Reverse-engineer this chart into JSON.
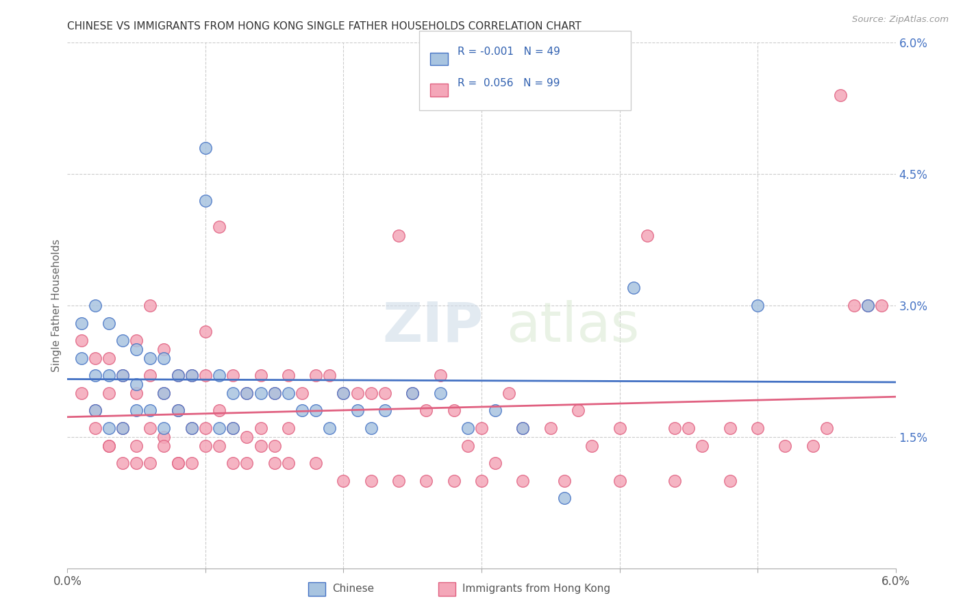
{
  "title": "CHINESE VS IMMIGRANTS FROM HONG KONG SINGLE FATHER HOUSEHOLDS CORRELATION CHART",
  "source": "Source: ZipAtlas.com",
  "ylabel": "Single Father Households",
  "xlim": [
    0.0,
    0.06
  ],
  "ylim": [
    0.0,
    0.06
  ],
  "legend_label1": "Chinese",
  "legend_label2": "Immigrants from Hong Kong",
  "legend_R1": "-0.001",
  "legend_N1": "49",
  "legend_R2": "0.056",
  "legend_N2": "99",
  "color_chinese": "#a8c4e0",
  "color_hk": "#f4a7b9",
  "line_color_chinese": "#4472c4",
  "line_color_hk": "#e06080",
  "watermark_zip": "ZIP",
  "watermark_atlas": "atlas",
  "chinese_x": [
    0.001,
    0.001,
    0.002,
    0.002,
    0.002,
    0.003,
    0.003,
    0.003,
    0.004,
    0.004,
    0.004,
    0.005,
    0.005,
    0.005,
    0.006,
    0.006,
    0.007,
    0.007,
    0.007,
    0.008,
    0.008,
    0.009,
    0.009,
    0.01,
    0.01,
    0.011,
    0.011,
    0.012,
    0.012,
    0.013,
    0.014,
    0.015,
    0.016,
    0.017,
    0.018,
    0.019,
    0.02,
    0.021,
    0.022,
    0.023,
    0.025,
    0.027,
    0.029,
    0.031,
    0.033,
    0.036,
    0.041,
    0.05,
    0.058
  ],
  "chinese_y": [
    0.028,
    0.024,
    0.03,
    0.022,
    0.018,
    0.028,
    0.022,
    0.016,
    0.026,
    0.022,
    0.016,
    0.025,
    0.021,
    0.018,
    0.024,
    0.018,
    0.024,
    0.02,
    0.016,
    0.022,
    0.018,
    0.022,
    0.016,
    0.048,
    0.042,
    0.022,
    0.016,
    0.02,
    0.016,
    0.02,
    0.02,
    0.02,
    0.02,
    0.018,
    0.018,
    0.016,
    0.02,
    0.018,
    0.016,
    0.018,
    0.02,
    0.02,
    0.016,
    0.018,
    0.016,
    0.008,
    0.032,
    0.03,
    0.03
  ],
  "hk_x": [
    0.001,
    0.001,
    0.002,
    0.002,
    0.003,
    0.003,
    0.003,
    0.004,
    0.004,
    0.005,
    0.005,
    0.005,
    0.006,
    0.006,
    0.006,
    0.007,
    0.007,
    0.007,
    0.008,
    0.008,
    0.008,
    0.009,
    0.009,
    0.01,
    0.01,
    0.01,
    0.011,
    0.011,
    0.012,
    0.012,
    0.013,
    0.013,
    0.014,
    0.014,
    0.015,
    0.015,
    0.016,
    0.016,
    0.017,
    0.018,
    0.019,
    0.02,
    0.021,
    0.022,
    0.023,
    0.024,
    0.025,
    0.026,
    0.027,
    0.028,
    0.029,
    0.03,
    0.031,
    0.032,
    0.033,
    0.035,
    0.037,
    0.038,
    0.04,
    0.042,
    0.044,
    0.045,
    0.046,
    0.048,
    0.05,
    0.052,
    0.054,
    0.055,
    0.056,
    0.057,
    0.058,
    0.002,
    0.003,
    0.004,
    0.005,
    0.006,
    0.007,
    0.008,
    0.009,
    0.01,
    0.011,
    0.012,
    0.013,
    0.014,
    0.015,
    0.016,
    0.018,
    0.02,
    0.022,
    0.024,
    0.026,
    0.028,
    0.03,
    0.033,
    0.036,
    0.04,
    0.044,
    0.048,
    0.059
  ],
  "hk_y": [
    0.026,
    0.02,
    0.024,
    0.018,
    0.024,
    0.02,
    0.014,
    0.022,
    0.016,
    0.026,
    0.02,
    0.014,
    0.03,
    0.022,
    0.016,
    0.025,
    0.02,
    0.015,
    0.022,
    0.018,
    0.012,
    0.022,
    0.016,
    0.027,
    0.022,
    0.016,
    0.039,
    0.018,
    0.022,
    0.016,
    0.02,
    0.015,
    0.022,
    0.016,
    0.02,
    0.014,
    0.022,
    0.016,
    0.02,
    0.022,
    0.022,
    0.02,
    0.02,
    0.02,
    0.02,
    0.038,
    0.02,
    0.018,
    0.022,
    0.018,
    0.014,
    0.016,
    0.012,
    0.02,
    0.016,
    0.016,
    0.018,
    0.014,
    0.016,
    0.038,
    0.016,
    0.016,
    0.014,
    0.016,
    0.016,
    0.014,
    0.014,
    0.016,
    0.054,
    0.03,
    0.03,
    0.016,
    0.014,
    0.012,
    0.012,
    0.012,
    0.014,
    0.012,
    0.012,
    0.014,
    0.014,
    0.012,
    0.012,
    0.014,
    0.012,
    0.012,
    0.012,
    0.01,
    0.01,
    0.01,
    0.01,
    0.01,
    0.01,
    0.01,
    0.01,
    0.01,
    0.01,
    0.01,
    0.03
  ]
}
